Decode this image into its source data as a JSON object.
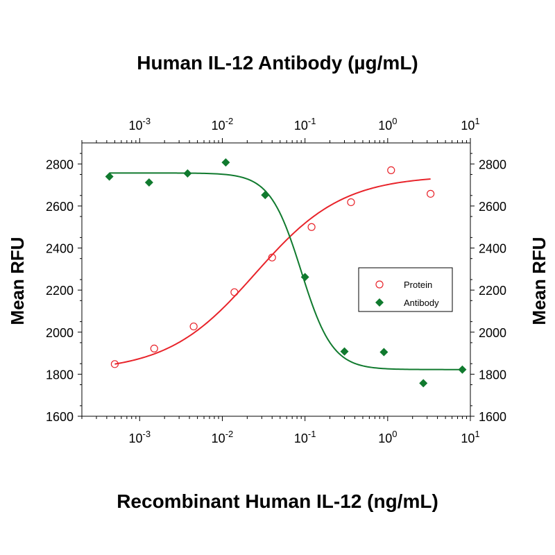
{
  "chart_data": {
    "type": "scatter",
    "title": "Human IL-12 Antibody (µg/mL)",
    "xlabel": "Recombinant Human IL-12 (ng/mL)",
    "ylabel": "Mean RFU",
    "ylabel_right": "Mean RFU",
    "xscale": "log",
    "x_bottom_lim": [
      0.0002,
      10
    ],
    "x_top_lim": [
      0.0002,
      10
    ],
    "ylim": [
      1600,
      2900
    ],
    "y_ticks": [
      "1600",
      "1800",
      "2000",
      "2200",
      "2400",
      "2600",
      "2800"
    ],
    "x_tick_values": [
      0.001,
      0.01,
      0.1,
      1,
      10
    ],
    "x_tick_bases": [
      "10",
      "10",
      "10",
      "10",
      "10"
    ],
    "x_tick_exponents": [
      "-3",
      "-2",
      "-1",
      "0",
      "1"
    ],
    "legend": {
      "position": "right-middle"
    },
    "series": [
      {
        "name": "Protein",
        "axis": "bottom",
        "color": "#e8232a",
        "marker": "open-circle",
        "x": [
          0.0005,
          0.0015,
          0.0045,
          0.014,
          0.04,
          0.12,
          0.36,
          1.1,
          3.3
        ],
        "y": [
          1848,
          1922,
          2027,
          2190,
          2355,
          2500,
          2618,
          2770,
          2658
        ],
        "fit": {
          "bottom": 1812,
          "top": 2745,
          "ec50": 0.025,
          "hill": 0.82
        }
      },
      {
        "name": "Antibody",
        "axis": "top",
        "color": "#107a2e",
        "marker": "filled-diamond",
        "x": [
          0.00043,
          0.0013,
          0.0038,
          0.011,
          0.033,
          0.1,
          0.3,
          0.9,
          2.7,
          8.0
        ],
        "y": [
          2740,
          2712,
          2755,
          2807,
          2652,
          2262,
          1908,
          1905,
          1757,
          1822
        ],
        "fit": {
          "bottom": 1822,
          "top": 2757,
          "ec50": 0.09,
          "hill": 2.3
        }
      }
    ]
  }
}
